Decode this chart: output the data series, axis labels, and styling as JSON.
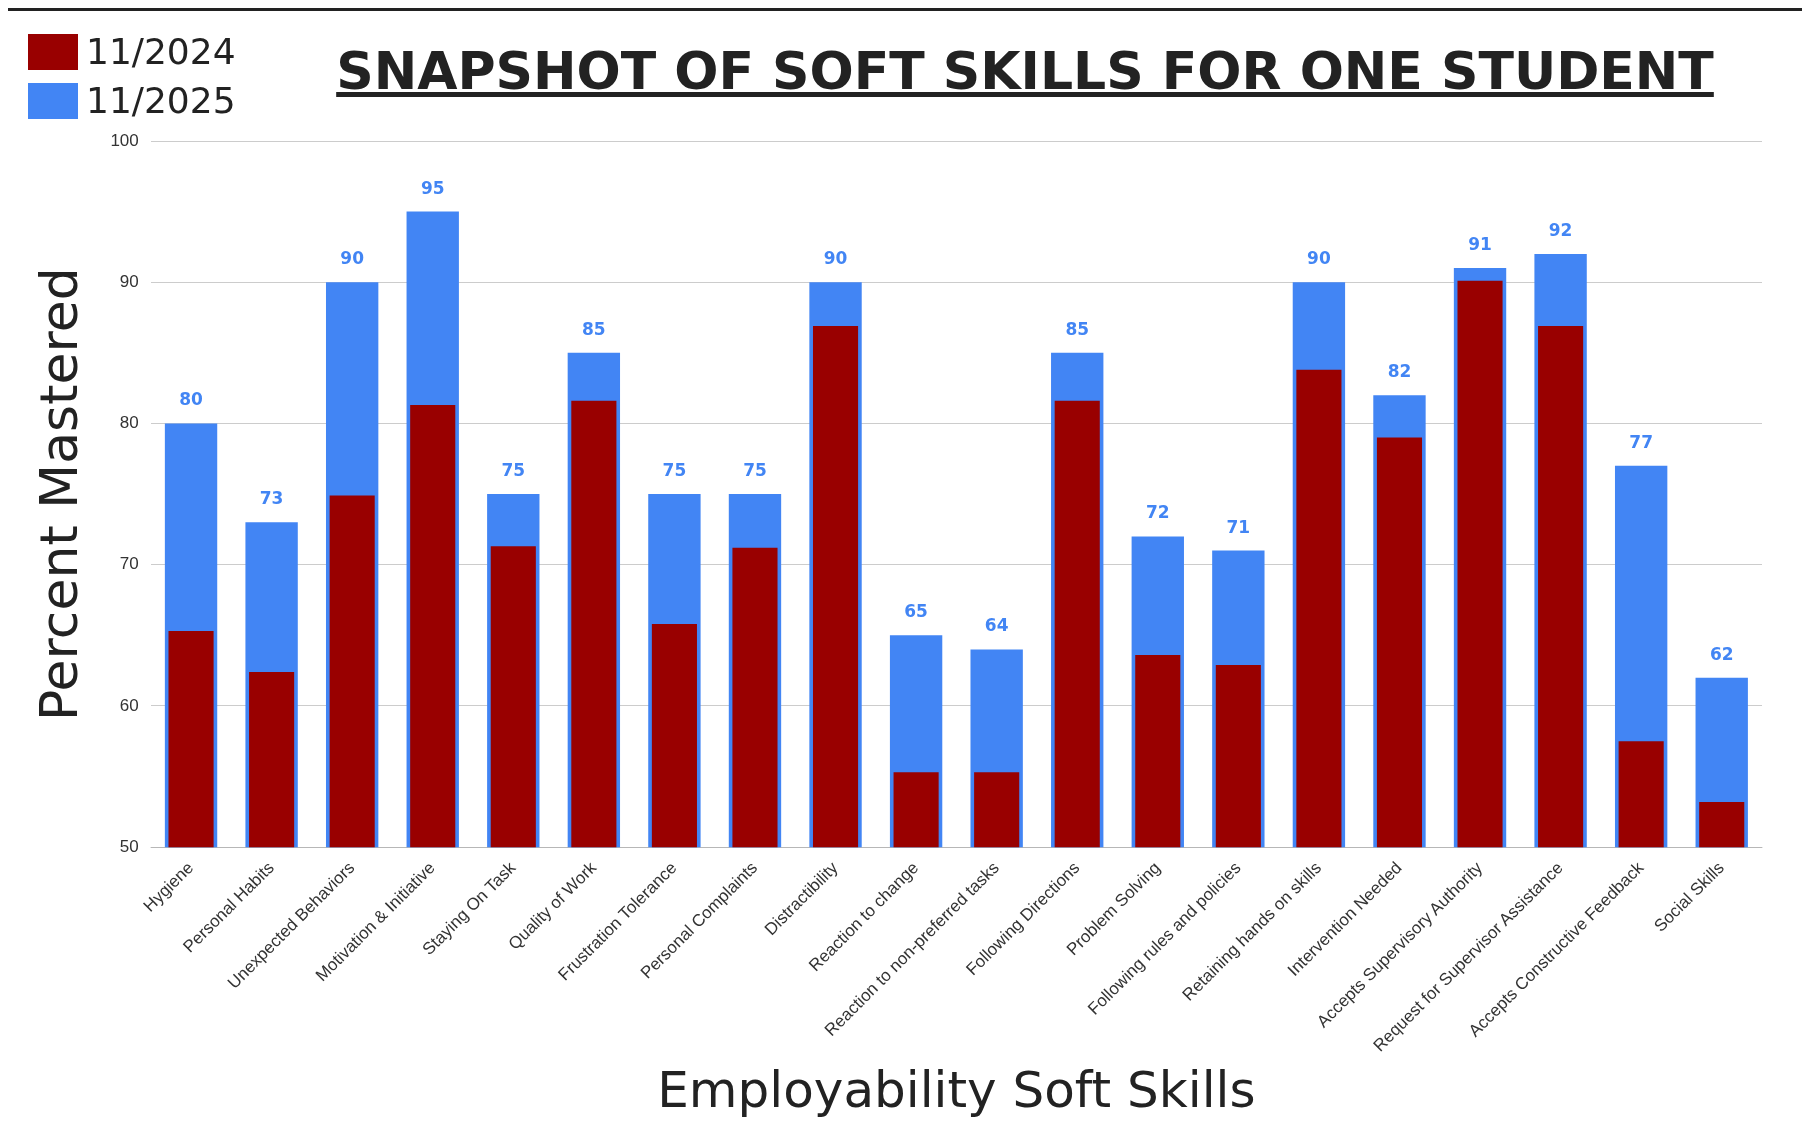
{
  "chart_data": {
    "type": "bar",
    "title": "SNAPSHOT OF SOFT SKILLS FOR ONE STUDENT",
    "xlabel": "Employability Soft Skills",
    "ylabel": "Percent Mastered",
    "categories": [
      "Hygiene",
      "Personal Habits",
      "Unexpected Behaviors",
      "Motivation & Initiative",
      "Staying On Task",
      "Quality of Work",
      "Frustration Tolerance",
      "Personal Complaints",
      "Distractibility",
      "Reaction to change",
      "Reaction to non-preferred tasks",
      "Following Directions",
      "Problem Solving",
      "Following rules and policies",
      "Retaining hands on skills",
      "Intervention Needed",
      "Accepts Supervisory Authority",
      "Request for Supervisor Assistance",
      "Accepts Constructive Feedback",
      "Social Skills"
    ],
    "series": [
      {
        "name": "11/2024",
        "color": "#990000",
        "values": [
          65.3,
          62.4,
          74.9,
          81.3,
          71.3,
          81.6,
          65.8,
          71.2,
          86.9,
          55.3,
          55.3,
          81.6,
          63.6,
          62.9,
          83.8,
          79,
          90.1,
          86.9,
          57.5,
          53.2
        ]
      },
      {
        "name": "11/2025",
        "color": "#4285f4",
        "values": [
          80,
          73,
          90,
          95,
          75,
          85,
          75,
          75,
          90,
          65,
          64,
          85,
          72,
          71,
          90,
          82,
          91,
          92,
          77,
          62
        ],
        "value_labels": [
          "80",
          "73",
          "90",
          "95",
          "75",
          "85",
          "75",
          "75",
          "90",
          "65",
          "64",
          "85",
          "72",
          "71",
          "90",
          "82",
          "91",
          "92",
          "77",
          "62"
        ]
      }
    ],
    "ylim": [
      50,
      100
    ],
    "yticks": [
      50,
      60,
      70,
      80,
      90,
      100
    ],
    "grid": "y",
    "legend": "top left"
  }
}
